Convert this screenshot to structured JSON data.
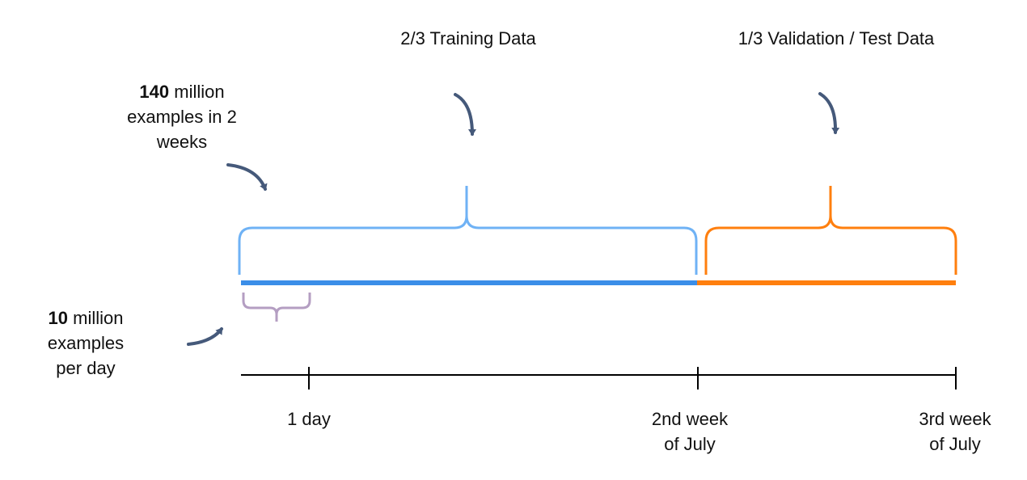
{
  "labels": {
    "training": "2/3 Training Data",
    "validation": "1/3 Validation / Test Data",
    "total": {
      "count": "140",
      "line1_rest": " million",
      "line2": "examples in 2",
      "line3": "weeks"
    },
    "per_day": {
      "count": "10",
      "line1_rest": " million",
      "line2": "examples",
      "line3": "per day"
    },
    "tick_1day": "1 day",
    "tick_2nd_week": {
      "line1": "2nd week",
      "line2": "of July"
    },
    "tick_3rd_week": {
      "line1": "3rd week",
      "line2": "of July"
    }
  },
  "colors": {
    "training_bar": "#3b8ee8",
    "training_brace": "#6fb2f5",
    "validation": "#ff7f0e",
    "day_brace": "#b49ec2",
    "arrow": "#45597a",
    "axis": "#000000"
  }
}
